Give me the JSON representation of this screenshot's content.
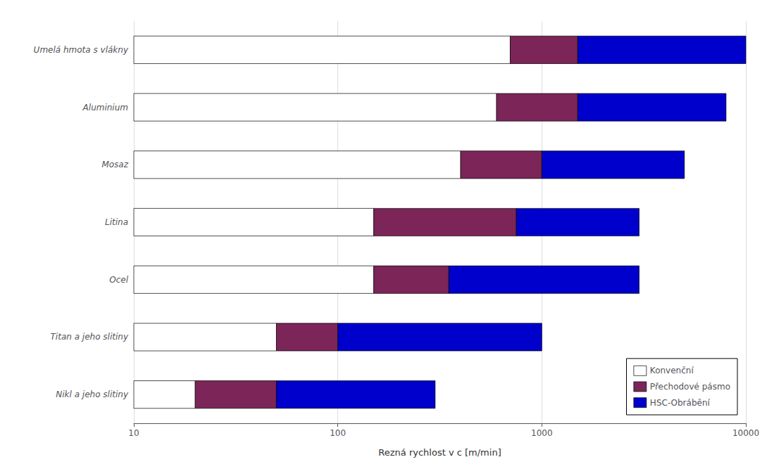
{
  "chart_data": {
    "type": "bar",
    "orientation": "horizontal",
    "categories": [
      "Nikl a jeho slitiny",
      "Titan a jeho slitiny",
      "Ocel",
      "Litina",
      "Mosaz",
      "Aluminium",
      "Umelá hmota s vlákny"
    ],
    "series": [
      {
        "name": "Konvenční",
        "color": "#ffffff",
        "values": [
          [
            10,
            20
          ],
          [
            10,
            50
          ],
          [
            10,
            150
          ],
          [
            10,
            150
          ],
          [
            10,
            400
          ],
          [
            10,
            600
          ],
          [
            10,
            700
          ]
        ]
      },
      {
        "name": "Přechodové pásmo",
        "color": "#7b2558",
        "values": [
          [
            20,
            50
          ],
          [
            50,
            100
          ],
          [
            150,
            350
          ],
          [
            150,
            750
          ],
          [
            400,
            1000
          ],
          [
            600,
            1500
          ],
          [
            700,
            1500
          ]
        ]
      },
      {
        "name": "HSC-Obrábění",
        "color": "#0000cc",
        "values": [
          [
            50,
            300
          ],
          [
            100,
            1000
          ],
          [
            350,
            3000
          ],
          [
            750,
            3000
          ],
          [
            1000,
            5000
          ],
          [
            1500,
            8000
          ],
          [
            1500,
            10000
          ]
        ]
      }
    ],
    "xlabel": "Rezná rychlost v c [m/min]",
    "xlim": [
      10,
      10000
    ],
    "xticks": [
      10,
      100,
      1000,
      10000
    ],
    "log": "x",
    "grid": true,
    "legend": "lower right"
  }
}
